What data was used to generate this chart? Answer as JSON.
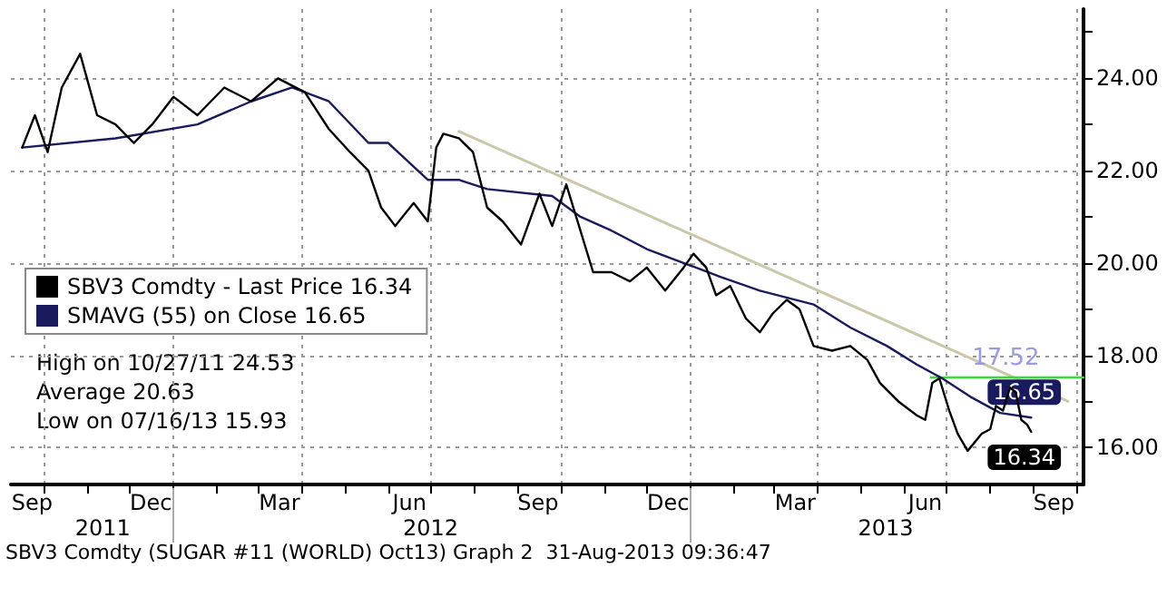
{
  "chart_data": {
    "type": "line",
    "xlim": [
      "2011-09-08",
      "2013-10-06"
    ],
    "xticks": [
      {
        "value": "2011-09-23",
        "label": "Sep"
      },
      {
        "value": "2011-12-16",
        "label": "Dec"
      },
      {
        "value": "2012-03-16",
        "label": "Mar"
      },
      {
        "value": "2012-06-16",
        "label": "Jun"
      },
      {
        "value": "2012-09-15",
        "label": "Sep"
      },
      {
        "value": "2012-12-16",
        "label": "Dec"
      },
      {
        "value": "2013-03-16",
        "label": "Mar"
      },
      {
        "value": "2013-06-16",
        "label": "Jun"
      },
      {
        "value": "2013-09-15",
        "label": "Sep"
      },
      {
        "value": "2011-10-01",
        "label": null
      },
      {
        "value": "2011-11-01",
        "label": null
      },
      {
        "value": "2011-12-01",
        "label": null
      },
      {
        "value": "2012-01-01",
        "label": null
      },
      {
        "value": "2012-02-01",
        "label": null
      },
      {
        "value": "2012-03-01",
        "label": null
      },
      {
        "value": "2012-04-01",
        "label": null
      },
      {
        "value": "2012-05-01",
        "label": null
      },
      {
        "value": "2012-06-01",
        "label": null
      },
      {
        "value": "2012-07-01",
        "label": null
      },
      {
        "value": "2012-08-01",
        "label": null
      },
      {
        "value": "2012-09-01",
        "label": null
      },
      {
        "value": "2012-10-01",
        "label": null
      },
      {
        "value": "2012-11-01",
        "label": null
      },
      {
        "value": "2012-12-01",
        "label": null
      },
      {
        "value": "2013-01-01",
        "label": null
      },
      {
        "value": "2013-02-01",
        "label": null
      },
      {
        "value": "2013-03-01",
        "label": null
      },
      {
        "value": "2013-04-01",
        "label": null
      },
      {
        "value": "2013-05-01",
        "label": null
      },
      {
        "value": "2013-06-01",
        "label": null
      },
      {
        "value": "2013-07-01",
        "label": null
      },
      {
        "value": "2013-08-01",
        "label": null
      },
      {
        "value": "2013-09-01",
        "label": null
      },
      {
        "value": "2013-10-01",
        "label": null
      }
    ],
    "x2lim": [
      "2011-09-08",
      "2013-10-06"
    ],
    "x2ticks": [
      {
        "value": "2011-11-12",
        "label": "2011"
      },
      {
        "value": "2012-07-01",
        "label": "2012"
      },
      {
        "value": "2013-05-19",
        "label": "2013"
      },
      {
        "value": "2012-01-01",
        "label": null
      },
      {
        "value": "2013-01-01",
        "label": null
      }
    ],
    "ylim": [
      15.2,
      25.5
    ],
    "yticks": [
      {
        "value": 16,
        "label": "16.00"
      },
      {
        "value": 18,
        "label": "18.00"
      },
      {
        "value": 20,
        "label": "20.00"
      },
      {
        "value": 22,
        "label": "22.00"
      },
      {
        "value": 24,
        "label": "24.00"
      },
      {
        "value": 17,
        "label": null
      },
      {
        "value": 19,
        "label": null
      },
      {
        "value": 21,
        "label": null
      },
      {
        "value": 23,
        "label": null
      },
      {
        "value": 25,
        "label": null
      }
    ],
    "grid": true,
    "legend": "bottom left",
    "marker": "none",
    "line_style": "solid",
    "series": [
      {
        "name": "SBV3 Comdty - Last Price 16.34",
        "color": "#000000",
        "x": [
          "2011-09-16",
          "2011-09-25",
          "2011-10-04",
          "2011-10-14",
          "2011-10-27",
          "2011-11-08",
          "2011-11-21",
          "2011-12-04",
          "2011-12-17",
          "2012-01-01",
          "2012-01-18",
          "2012-02-06",
          "2012-02-25",
          "2012-03-15",
          "2012-04-03",
          "2012-04-20",
          "2012-05-05",
          "2012-05-18",
          "2012-05-27",
          "2012-06-06",
          "2012-06-19",
          "2012-06-29",
          "2012-07-05",
          "2012-07-10",
          "2012-07-21",
          "2012-07-31",
          "2012-08-10",
          "2012-08-21",
          "2012-09-03",
          "2012-09-16",
          "2012-09-25",
          "2012-10-05",
          "2012-10-15",
          "2012-10-24",
          "2012-11-06",
          "2012-11-19",
          "2012-12-01",
          "2012-12-14",
          "2012-12-27",
          "2013-01-03",
          "2013-01-12",
          "2013-01-19",
          "2013-01-29",
          "2013-02-09",
          "2013-02-19",
          "2013-02-28",
          "2013-03-10",
          "2013-03-19",
          "2013-03-29",
          "2013-04-11",
          "2013-04-24",
          "2013-05-06",
          "2013-05-15",
          "2013-05-28",
          "2013-06-10",
          "2013-06-16",
          "2013-06-21",
          "2013-06-26",
          "2013-07-03",
          "2013-07-09",
          "2013-07-16",
          "2013-07-26",
          "2013-08-01",
          "2013-08-05",
          "2013-08-10",
          "2013-08-15",
          "2013-08-19",
          "2013-08-23",
          "2013-08-27",
          "2013-08-30"
        ],
        "values": [
          22.5,
          23.2,
          22.4,
          23.8,
          24.53,
          23.2,
          23.0,
          22.6,
          23.0,
          23.6,
          23.2,
          23.8,
          23.5,
          24.0,
          23.7,
          22.9,
          22.4,
          22.0,
          21.2,
          20.8,
          21.3,
          20.9,
          22.5,
          22.8,
          22.7,
          22.4,
          21.2,
          20.9,
          20.4,
          21.5,
          20.8,
          21.7,
          20.7,
          19.8,
          19.8,
          19.6,
          19.9,
          19.4,
          19.9,
          20.2,
          19.9,
          19.3,
          19.5,
          18.8,
          18.5,
          18.9,
          19.2,
          19.0,
          18.2,
          18.1,
          18.2,
          17.9,
          17.4,
          17.0,
          16.7,
          16.6,
          17.4,
          17.5,
          16.8,
          16.3,
          15.93,
          16.3,
          16.4,
          16.9,
          16.8,
          17.3,
          17.2,
          16.6,
          16.5,
          16.34
        ],
        "value_labels": [
          null,
          null,
          null,
          null,
          null,
          null,
          null,
          null,
          null,
          null,
          null,
          null,
          null,
          null,
          null,
          null,
          null,
          null,
          null,
          null,
          null,
          null,
          null,
          null,
          null,
          null,
          null,
          null,
          null,
          null,
          null,
          null,
          null,
          null,
          null,
          null,
          null,
          null,
          null,
          null,
          null,
          null,
          null,
          null,
          null,
          null,
          null,
          null,
          null,
          null,
          null,
          null,
          null,
          null,
          null,
          null,
          null,
          null,
          null,
          null,
          null,
          null,
          null,
          null,
          null,
          null,
          null,
          null,
          null,
          "16.34"
        ]
      },
      {
        "name": "SMAVG (55) on Close 16.65",
        "color": "#1a1a5e",
        "x": [
          "2011-09-16",
          "2011-11-21",
          "2012-01-18",
          "2012-02-25",
          "2012-03-25",
          "2012-04-20",
          "2012-05-18",
          "2012-06-01",
          "2012-06-29",
          "2012-07-21",
          "2012-08-10",
          "2012-09-25",
          "2012-10-15",
          "2012-11-06",
          "2012-12-01",
          "2012-12-27",
          "2013-01-22",
          "2013-02-19",
          "2013-03-29",
          "2013-04-24",
          "2013-05-20",
          "2013-06-10",
          "2013-06-28",
          "2013-07-18",
          "2013-08-08",
          "2013-08-30"
        ],
        "values": [
          22.5,
          22.7,
          23.0,
          23.5,
          23.8,
          23.5,
          22.6,
          22.6,
          21.8,
          21.8,
          21.6,
          21.45,
          21.0,
          20.7,
          20.3,
          20.0,
          19.7,
          19.4,
          19.1,
          18.6,
          18.2,
          17.8,
          17.5,
          17.1,
          16.75,
          16.65
        ],
        "value_labels": [
          null,
          null,
          null,
          null,
          null,
          null,
          null,
          null,
          null,
          null,
          null,
          null,
          null,
          null,
          null,
          null,
          null,
          null,
          null,
          null,
          null,
          null,
          null,
          null,
          null,
          "16.65"
        ]
      },
      {
        "color": "#c9c9aa",
        "x": [
          "2012-07-21",
          "2013-09-25"
        ],
        "values": [
          22.85,
          17.0
        ]
      },
      {
        "color": "#33dd33",
        "x": [
          "2013-06-20",
          "2013-08-12",
          "2013-10-06"
        ],
        "values": [
          17.52,
          17.52,
          17.52
        ],
        "value_labels": [
          null,
          "17.52",
          null
        ]
      }
    ],
    "annotations": [
      "High on 10/27/11 24.53",
      "Average 20.63",
      "Low on 07/16/13 15.93",
      "SBV3 Comdty (SUGAR #11 (WORLD) Oct13) Graph 2  31-Aug-2013 09:36:47"
    ]
  }
}
